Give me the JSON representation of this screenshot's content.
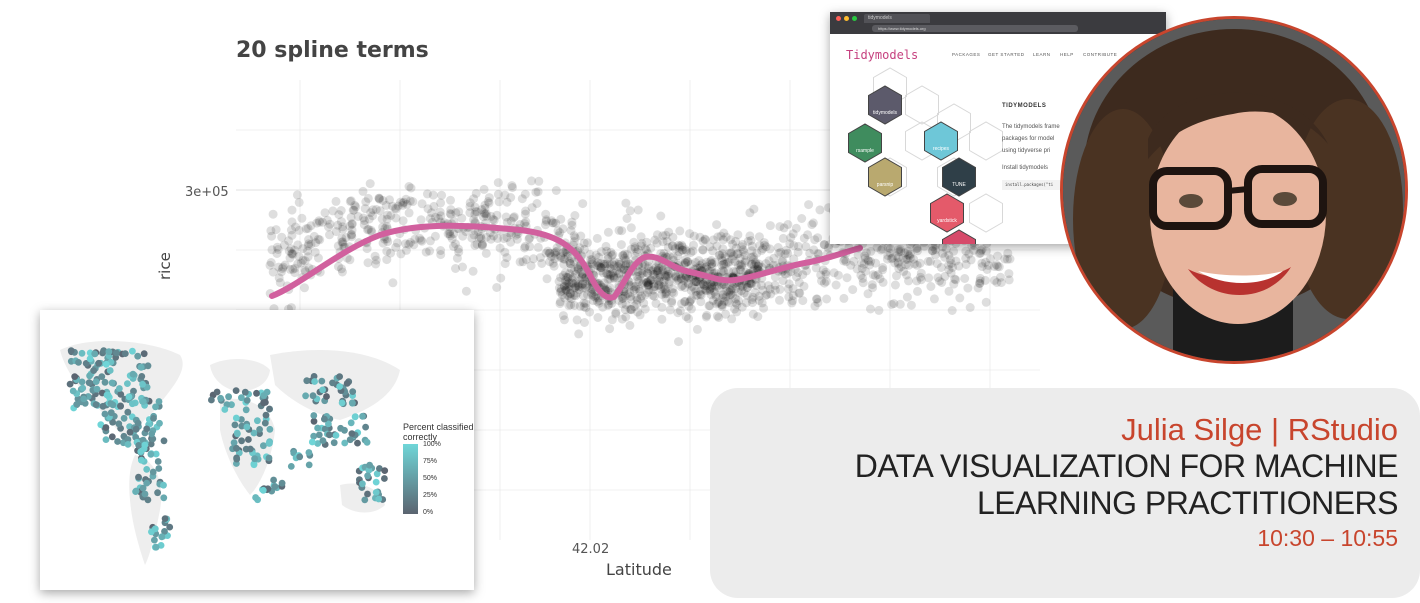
{
  "plot": {
    "title": "20 spline terms",
    "y_tick": "3e+05",
    "y_label": "rice",
    "x_tick": "42.02",
    "x_label": "Latitude",
    "colors": {
      "curve": "#d1609e",
      "points": "#000000",
      "grid": "#ebebeb"
    }
  },
  "map": {
    "legend_title": "Percent classified correctly",
    "legend_labels": [
      "100%",
      "75%",
      "50%",
      "25%",
      "0%"
    ],
    "colors": {
      "high": "#6fd6d8",
      "low": "#5b6470",
      "land": "#eeeeee"
    }
  },
  "browser": {
    "tab_label": "tidymodels",
    "url": "https://www.tidymodels.org",
    "logo": "Tidymodels",
    "nav": [
      "PACKAGES",
      "GET STARTED",
      "LEARN",
      "HELP",
      "CONTRIBUTE"
    ],
    "heading": "TIDYMODELS",
    "text_lines": [
      "The tidymodels frame",
      "packages for model",
      "using tidyverse pri",
      "Install tidymodels"
    ],
    "code": "install.packages(\"ti",
    "hex_labels": [
      "tidymodels",
      "rsample",
      "recipes",
      "parsnip",
      "TUNE",
      "yardstick"
    ]
  },
  "speaker": {
    "name": "Julia Silge | RStudio"
  },
  "talk": {
    "title_lines": [
      "DATA VISUALIZATION FOR MACHINE",
      "LEARNING PRACTITIONERS"
    ],
    "time": "10:30 – 10:55"
  },
  "colors": {
    "accent": "#c8452d",
    "panel": "#ececec"
  }
}
